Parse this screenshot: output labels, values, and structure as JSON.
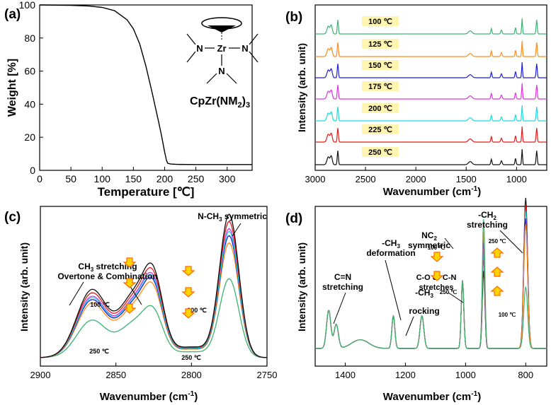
{
  "chart_data": [
    {
      "panel": "(a)",
      "type": "line",
      "xlabel": "Temperature [℃]",
      "ylabel": "Weight [%]",
      "xlim": [
        0,
        340
      ],
      "ylim": [
        0,
        100
      ],
      "xticks": [
        0,
        50,
        100,
        150,
        200,
        250,
        300
      ],
      "yticks": [
        0,
        20,
        40,
        60,
        80,
        100
      ],
      "series": [
        {
          "color": "#000000",
          "x": [
            0,
            50,
            80,
            100,
            120,
            140,
            150,
            160,
            170,
            180,
            190,
            195,
            200,
            203,
            205,
            210,
            220,
            250,
            300,
            340
          ],
          "y": [
            100,
            99.8,
            99.3,
            98.5,
            96.5,
            91,
            85.5,
            76.5,
            63,
            47,
            30,
            21,
            11,
            6,
            4.2,
            3.8,
            3.6,
            3.5,
            3.5,
            3.5
          ]
        }
      ],
      "molecule": {
        "center_atom": "Zr",
        "atom_N": "N",
        "formula_prefix": "CpZr(NM",
        "formula_sub1": "2",
        "formula_suffix": ")",
        "formula_sub2": "3"
      }
    },
    {
      "panel": "(b)",
      "type": "line",
      "xlabel": "Wavenumber (cm",
      "xlabel_sup": "-1",
      "xlabel_end": ")",
      "ylabel": "Intensity (arb. unit)",
      "xlim": [
        3000,
        700
      ],
      "xticks": [
        3000,
        2500,
        2000,
        1500,
        1000
      ],
      "legend_placement": "center",
      "temperatures": [
        "250 ℃",
        "225 ℃",
        "200 ℃",
        "175 ℃",
        "150 ℃",
        "125 ℃",
        "100 ℃"
      ],
      "colors": [
        "#3cb371",
        "#ff8c1a",
        "#1f1fd6",
        "#e033e0",
        "#20d8e0",
        "#e01b1b",
        "#111111"
      ],
      "label_bg": "#fff5b0"
    },
    {
      "panel": "(c)",
      "type": "line",
      "xlabel": "Wavenumber (cm",
      "xlabel_sup": "-1",
      "xlabel_end": ")",
      "ylabel": "Intensity (arb. unit)",
      "xlim": [
        2900,
        2750
      ],
      "xticks": [
        2900,
        2850,
        2800,
        2750
      ],
      "annotations": {
        "ch3_line1": "CH",
        "ch3_sub": "3",
        "ch3_line1_end": " stretching",
        "ch3_line2": "Overtone & Combination",
        "nch3": "N-CH",
        "nch3_sub": "3",
        "nch3_end": " symmetric",
        "t100_left": "100 ℃",
        "t250_left": "250 ℃",
        "t100_right": "100 ℃",
        "t250_right": "250 ℃"
      }
    },
    {
      "panel": "(d)",
      "type": "line",
      "xlabel": "Wavenumber (cm",
      "xlabel_sup": "-1",
      "xlabel_end": ")",
      "ylabel": "Intensity (arb. unit)",
      "xlim": [
        1500,
        730
      ],
      "xticks": [
        1400,
        1200,
        1000,
        800
      ],
      "annotations": {
        "cn1": "C=N",
        "cn2": "stretching",
        "ch3def1": "-CH",
        "ch3def_sub": "3",
        "ch3def2": "deformation",
        "ch3rock1": "-CH",
        "ch3rock_sub": "3",
        "ch3rock2": "rocking",
        "nc2_1": "NC",
        "nc2_sub": "2",
        "nc2_2": "symmetric",
        "ch2_1": "-CH",
        "ch2_sub": "2",
        "ch2_2": "stretching",
        "co1": "C-O or C-N",
        "co2": "stretches",
        "t100_a": "100 ℃",
        "t250_a": "250 ℃",
        "t250_b": "250 ℃",
        "t100_b": "100 ℃"
      }
    }
  ]
}
